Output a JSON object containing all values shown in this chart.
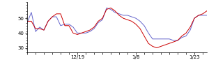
{
  "blue_y": [
    47,
    54,
    41,
    44,
    42,
    48,
    51,
    51,
    45,
    46,
    46,
    44,
    40,
    40,
    40,
    41,
    43,
    47,
    49,
    57,
    56,
    54,
    53,
    52,
    52,
    51,
    50,
    48,
    45,
    40,
    36,
    36,
    36,
    36,
    36,
    35,
    35,
    37,
    38,
    42,
    50,
    52,
    52,
    52
  ],
  "red_y": [
    48,
    48,
    43,
    43,
    42,
    48,
    51,
    53,
    53,
    45,
    45,
    40,
    39,
    40,
    41,
    42,
    44,
    48,
    50,
    56,
    57,
    55,
    52,
    50,
    49,
    48,
    46,
    43,
    38,
    33,
    31,
    30,
    31,
    32,
    33,
    34,
    35,
    38,
    40,
    44,
    50,
    52,
    53,
    55
  ],
  "x_tick_labels": [
    "12/19",
    "1/8",
    "1/23"
  ],
  "x_tick_pos_labels": [
    12,
    26,
    40
  ],
  "yticks": [
    30,
    40,
    50
  ],
  "ylim": [
    27,
    61
  ],
  "blue_color": "#6666cc",
  "red_color": "#cc0000",
  "bg_color": "#ffffff",
  "linewidth": 0.7
}
